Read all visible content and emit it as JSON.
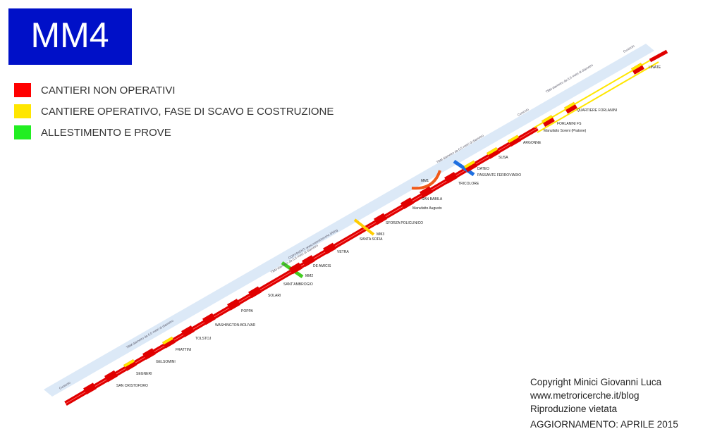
{
  "header": {
    "title": "MM4"
  },
  "legend": [
    "CANTIERI NON OPERATIVI",
    "CANTIERE OPERATIVO, FASE DI SCAVO E COSTRUZIONE",
    "ALLESTIMENTO E PROVE"
  ],
  "stations": [
    "SAN CRISTOFORO",
    "SEGNERI",
    "GELSOMINI",
    "FRATTINI",
    "TOLSTOJ",
    "WASHINGTON-BOLIVAR",
    "POPPA",
    "SOLARI",
    "SANT'AMBROGIO",
    "MM2",
    "DE AMICIS",
    "VETRA",
    "SANTA SOFIA",
    "MM3",
    "SFORZA POLICLINICO",
    "Manufatto Augusto",
    "SAN BABILA",
    "MM1",
    "TRICOLORE",
    "PASSANTE FERROVIARIO",
    "DATEO",
    "SUSA",
    "ARGONNE",
    "Manufatto Soreni (Pratone)",
    "FORLANINI FS",
    "QUARTIERE FORLANINI",
    "LINATE"
  ],
  "band_labels": [
    "Cunicolo",
    "TBM diametro da 6,5 metri di diametro",
    "COPYRIGHT: www.metroricerche.it/blog",
    "TBM diametro da 6,5 metri di diametro",
    "TBM diametro da 6,5 metri di diametro",
    "Cunicolo",
    "TBM diametro da 6,5 metri di diametro",
    "Cunicolo"
  ],
  "footer": [
    "Copyright Minici Giovanni Luca",
    "www.metroricerche.it/blog",
    "Riproduzione vietata",
    "AGGIORNAMENTO: APRILE 2015"
  ]
}
